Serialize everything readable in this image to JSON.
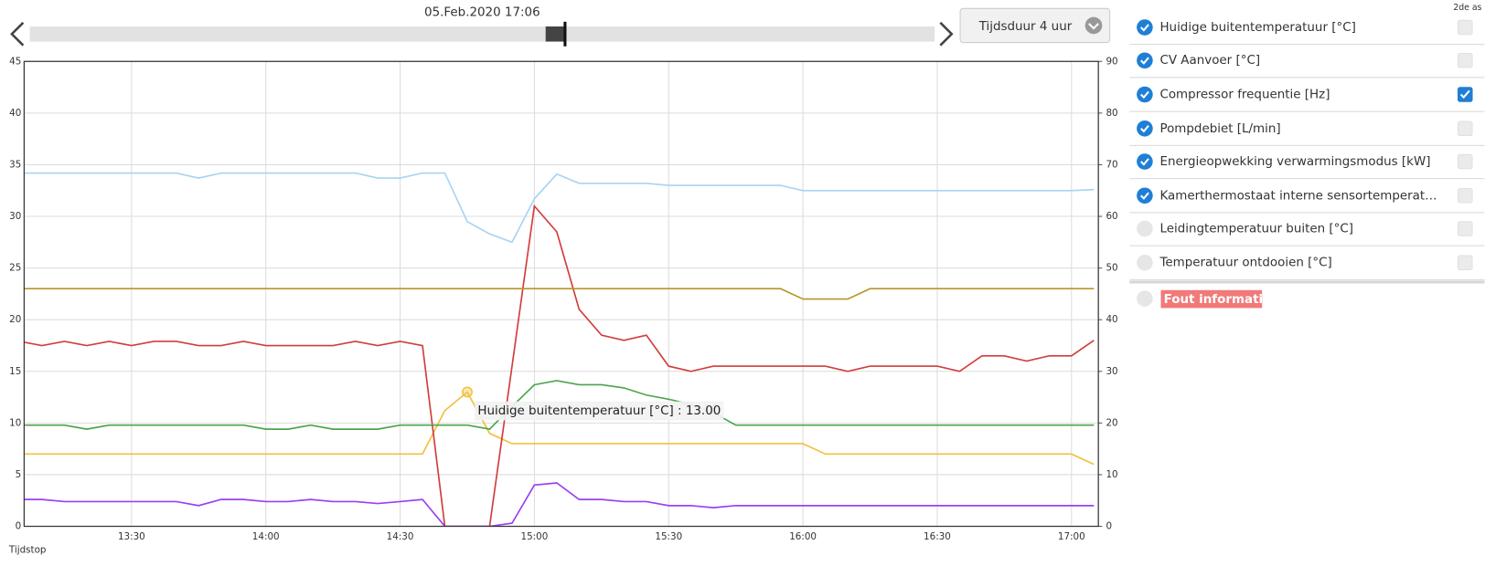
{
  "header": {
    "date": "05.Feb.2020 17:06",
    "duration": "Tijdsduur 4 uur",
    "second_axis": "2de as",
    "x_caption": "Tijdstop"
  },
  "chart_data": {
    "type": "line",
    "x": [
      "13:05",
      "13:10",
      "13:15",
      "13:20",
      "13:25",
      "13:30",
      "13:35",
      "13:40",
      "13:45",
      "13:50",
      "13:55",
      "14:00",
      "14:05",
      "14:10",
      "14:15",
      "14:20",
      "14:25",
      "14:30",
      "14:35",
      "14:40",
      "14:45",
      "14:50",
      "14:55",
      "15:00",
      "15:05",
      "15:10",
      "15:15",
      "15:20",
      "15:25",
      "15:30",
      "15:35",
      "15:40",
      "15:45",
      "15:50",
      "15:55",
      "16:00",
      "16:05",
      "16:10",
      "16:15",
      "16:20",
      "16:25",
      "16:30",
      "16:35",
      "16:40",
      "16:45",
      "16:50",
      "16:55",
      "17:00",
      "17:05"
    ],
    "xlim": [
      "13:06",
      "17:06"
    ],
    "xticks": [
      "13:30",
      "14:00",
      "14:30",
      "15:00",
      "15:30",
      "16:00",
      "16:30",
      "17:00"
    ],
    "ylim": [
      0,
      45
    ],
    "yticks": [
      0,
      5,
      10,
      15,
      20,
      25,
      30,
      35,
      40,
      45
    ],
    "y2lim": [
      0,
      90
    ],
    "y2ticks": [
      0,
      10,
      20,
      30,
      40,
      50,
      60,
      70,
      80,
      90
    ],
    "grid": true,
    "series": [
      {
        "name": "Huidige buitentemperatuur [°C]",
        "color": "#f3c03c",
        "text_color": "#eaab2c",
        "visible": true,
        "values": [
          7,
          7,
          7,
          7,
          7,
          7,
          7,
          7,
          7,
          7,
          7,
          7,
          7,
          7,
          7,
          7,
          7,
          7,
          7,
          11.2,
          13,
          9,
          8,
          8,
          8,
          8,
          8,
          8,
          8,
          8,
          8,
          8,
          8,
          8,
          8,
          8,
          7,
          7,
          7,
          7,
          7,
          7,
          7,
          7,
          7,
          7,
          7,
          7,
          6
        ]
      },
      {
        "name": "CV Aanvoer [°C]",
        "color": "#a9d4f2",
        "text_color": "#9fcdef",
        "visible": true,
        "values": [
          34.2,
          34.2,
          34.2,
          34.2,
          34.2,
          34.2,
          34.2,
          34.2,
          33.7,
          34.2,
          34.2,
          34.2,
          34.2,
          34.2,
          34.2,
          34.2,
          33.7,
          33.7,
          34.2,
          34.2,
          29.5,
          28.3,
          27.5,
          31.7,
          34.1,
          33.2,
          33.2,
          33.2,
          33.2,
          33,
          33,
          33,
          33,
          33,
          33,
          32.5,
          32.5,
          32.5,
          32.5,
          32.5,
          32.5,
          32.5,
          32.5,
          32.5,
          32.5,
          32.5,
          32.5,
          32.5,
          32.6
        ]
      },
      {
        "name": "Compressor frequentie [Hz]",
        "color": "#d23c3c",
        "text_color": "#cf3a3a",
        "visible": true,
        "axis": "y2",
        "values": [
          35.8,
          35,
          35.8,
          35,
          35.8,
          35,
          35.8,
          35.8,
          35,
          35,
          35.8,
          35,
          35,
          35,
          35,
          35.8,
          35,
          35.8,
          35,
          0,
          0,
          0,
          31,
          62,
          57,
          42,
          37,
          36,
          37,
          31,
          30,
          31,
          31,
          31,
          31,
          31,
          31,
          30,
          31,
          31,
          31,
          31,
          30,
          33,
          33,
          32,
          33,
          33,
          36
        ]
      },
      {
        "name": "Pompdebiet [L/min]",
        "color": "#4ba54b",
        "text_color": "#3f9d3f",
        "visible": true,
        "values": [
          9.8,
          9.8,
          9.8,
          9.4,
          9.8,
          9.8,
          9.8,
          9.8,
          9.8,
          9.8,
          9.8,
          9.4,
          9.4,
          9.8,
          9.4,
          9.4,
          9.4,
          9.8,
          9.8,
          9.8,
          9.8,
          9.4,
          11.6,
          13.7,
          14.1,
          13.7,
          13.7,
          13.4,
          12.7,
          12.3,
          11.8,
          11,
          9.8,
          9.8,
          9.8,
          9.8,
          9.8,
          9.8,
          9.8,
          9.8,
          9.8,
          9.8,
          9.8,
          9.8,
          9.8,
          9.8,
          9.8,
          9.8,
          9.8
        ]
      },
      {
        "name": "Energieopwekking verwarmingsmodus [kW]",
        "color": "#9b3ff2",
        "text_color": "#9238ee",
        "visible": true,
        "values": [
          2.6,
          2.6,
          2.4,
          2.4,
          2.4,
          2.4,
          2.4,
          2.4,
          2,
          2.6,
          2.6,
          2.4,
          2.4,
          2.6,
          2.4,
          2.4,
          2.2,
          2.4,
          2.6,
          0,
          0,
          0,
          0.3,
          4,
          4.2,
          2.6,
          2.6,
          2.4,
          2.4,
          2,
          2,
          1.8,
          2,
          2,
          2,
          2,
          2,
          2,
          2,
          2,
          2,
          2,
          2,
          2,
          2,
          2,
          2,
          2,
          2
        ]
      },
      {
        "name": "Kamerthermostaat interne sensortemperat…",
        "color": "#b8952a",
        "text_color": "#b08a22",
        "visible": true,
        "values": [
          23,
          23,
          23,
          23,
          23,
          23,
          23,
          23,
          23,
          23,
          23,
          23,
          23,
          23,
          23,
          23,
          23,
          23,
          23,
          23,
          23,
          23,
          23,
          23,
          23,
          23,
          23,
          23,
          23,
          23,
          23,
          23,
          23,
          23,
          23,
          22,
          22,
          22,
          23,
          23,
          23,
          23,
          23,
          23,
          23,
          23,
          23,
          23,
          23
        ]
      }
    ],
    "hidden_series": [
      {
        "name": "Leidingtemperatuur buiten [°C]",
        "text_color": "#c3dff3",
        "visible": false
      },
      {
        "name": "Temperatuur ontdooien [°C]",
        "text_color": "#e6b3b3",
        "visible": false
      }
    ],
    "tooltip": {
      "text": "Huidige buitentemperatuur [°C] : 13.00",
      "x": "14:45"
    }
  },
  "error_item": "Fout informatie"
}
